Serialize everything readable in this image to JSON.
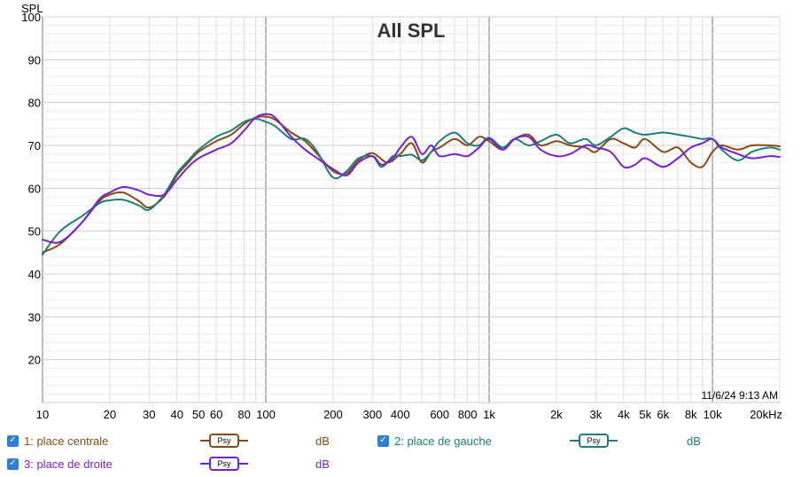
{
  "chart_data": {
    "type": "line",
    "title": "All SPL",
    "ylabel": "SPL",
    "xlabel": "",
    "x_scale": "log",
    "xlim": [
      10,
      20000
    ],
    "ylim": [
      10,
      100
    ],
    "x_ticks": [
      {
        "value": 10,
        "label": "10"
      },
      {
        "value": 20,
        "label": "20"
      },
      {
        "value": 30,
        "label": "30"
      },
      {
        "value": 40,
        "label": "40"
      },
      {
        "value": 50,
        "label": "50"
      },
      {
        "value": 60,
        "label": "60"
      },
      {
        "value": 80,
        "label": "80"
      },
      {
        "value": 100,
        "label": "100"
      },
      {
        "value": 200,
        "label": "200"
      },
      {
        "value": 300,
        "label": "300"
      },
      {
        "value": 400,
        "label": "400"
      },
      {
        "value": 600,
        "label": "600"
      },
      {
        "value": 800,
        "label": "800"
      },
      {
        "value": 1000,
        "label": "1k"
      },
      {
        "value": 2000,
        "label": "2k"
      },
      {
        "value": 3000,
        "label": "3k"
      },
      {
        "value": 4000,
        "label": "4k"
      },
      {
        "value": 5000,
        "label": "5k"
      },
      {
        "value": 6000,
        "label": "6k"
      },
      {
        "value": 8000,
        "label": "8k"
      },
      {
        "value": 10000,
        "label": "10k"
      },
      {
        "value": 20000,
        "label": "20kHz"
      }
    ],
    "y_ticks": [
      20,
      30,
      40,
      50,
      60,
      70,
      80,
      90,
      100
    ],
    "grid": true,
    "timestamp": "11/6/24 9:13 AM",
    "series": [
      {
        "name": "1: place centrale",
        "color": "#8B4A12",
        "points": [
          [
            10,
            45
          ],
          [
            12,
            47
          ],
          [
            15,
            52
          ],
          [
            18,
            57
          ],
          [
            20,
            58.5
          ],
          [
            23,
            59
          ],
          [
            27,
            57
          ],
          [
            30,
            55.5
          ],
          [
            35,
            58
          ],
          [
            40,
            63
          ],
          [
            45,
            66
          ],
          [
            50,
            68.5
          ],
          [
            60,
            71
          ],
          [
            70,
            72.5
          ],
          [
            80,
            75
          ],
          [
            90,
            76.5
          ],
          [
            100,
            76.7
          ],
          [
            110,
            76
          ],
          [
            130,
            73
          ],
          [
            150,
            71
          ],
          [
            170,
            68
          ],
          [
            200,
            64
          ],
          [
            230,
            63.5
          ],
          [
            260,
            66.5
          ],
          [
            300,
            68.2
          ],
          [
            350,
            66
          ],
          [
            400,
            68
          ],
          [
            450,
            70.5
          ],
          [
            500,
            66
          ],
          [
            550,
            68.5
          ],
          [
            600,
            69.5
          ],
          [
            700,
            71.5
          ],
          [
            800,
            70
          ],
          [
            900,
            72
          ],
          [
            1000,
            71
          ],
          [
            1150,
            69
          ],
          [
            1300,
            71.5
          ],
          [
            1500,
            72.5
          ],
          [
            1700,
            70
          ],
          [
            2000,
            71
          ],
          [
            2300,
            70
          ],
          [
            2700,
            69.5
          ],
          [
            3000,
            68.5
          ],
          [
            3500,
            71.5
          ],
          [
            4000,
            70.5
          ],
          [
            4500,
            69.5
          ],
          [
            5000,
            71.5
          ],
          [
            6000,
            68.5
          ],
          [
            7000,
            69.5
          ],
          [
            8000,
            66
          ],
          [
            9000,
            65
          ],
          [
            10000,
            68.5
          ],
          [
            11000,
            70
          ],
          [
            13000,
            69
          ],
          [
            15000,
            70
          ],
          [
            18000,
            70
          ],
          [
            20000,
            69.8
          ]
        ]
      },
      {
        "name": "2: place de gauche",
        "color": "#1A7F7A",
        "points": [
          [
            10,
            44.5
          ],
          [
            12,
            50
          ],
          [
            15,
            53.5
          ],
          [
            18,
            56.5
          ],
          [
            20,
            57.2
          ],
          [
            23,
            57.3
          ],
          [
            27,
            56
          ],
          [
            30,
            55
          ],
          [
            35,
            58.5
          ],
          [
            40,
            63.5
          ],
          [
            45,
            66.5
          ],
          [
            50,
            69
          ],
          [
            60,
            72
          ],
          [
            70,
            73.5
          ],
          [
            80,
            75.5
          ],
          [
            90,
            76.2
          ],
          [
            100,
            75.5
          ],
          [
            110,
            74.5
          ],
          [
            130,
            71.5
          ],
          [
            150,
            71.5
          ],
          [
            170,
            68.5
          ],
          [
            200,
            62.5
          ],
          [
            230,
            64
          ],
          [
            260,
            67
          ],
          [
            300,
            67.5
          ],
          [
            330,
            65
          ],
          [
            370,
            67.5
          ],
          [
            400,
            67.5
          ],
          [
            450,
            67.8
          ],
          [
            500,
            66.5
          ],
          [
            550,
            68.5
          ],
          [
            600,
            71
          ],
          [
            700,
            73
          ],
          [
            800,
            70.5
          ],
          [
            900,
            70
          ],
          [
            1000,
            71.8
          ],
          [
            1150,
            69.5
          ],
          [
            1300,
            71.5
          ],
          [
            1500,
            70
          ],
          [
            1700,
            71
          ],
          [
            2000,
            72.5
          ],
          [
            2300,
            70.5
          ],
          [
            2700,
            71.5
          ],
          [
            3000,
            70
          ],
          [
            3500,
            72
          ],
          [
            4000,
            74
          ],
          [
            4500,
            73
          ],
          [
            5000,
            72.5
          ],
          [
            6000,
            73
          ],
          [
            7000,
            72.5
          ],
          [
            8000,
            72
          ],
          [
            9000,
            71.5
          ],
          [
            10000,
            71.5
          ],
          [
            11000,
            69
          ],
          [
            13000,
            66.5
          ],
          [
            15000,
            68.5
          ],
          [
            18000,
            69.5
          ],
          [
            20000,
            69
          ]
        ]
      },
      {
        "name": "3: place de droite",
        "color": "#7B1FD6",
        "points": [
          [
            10,
            48
          ],
          [
            12,
            47.5
          ],
          [
            15,
            52
          ],
          [
            18,
            57.5
          ],
          [
            20,
            59
          ],
          [
            23,
            60.3
          ],
          [
            27,
            59.5
          ],
          [
            30,
            58.5
          ],
          [
            35,
            58.5
          ],
          [
            40,
            62
          ],
          [
            45,
            65
          ],
          [
            50,
            67
          ],
          [
            60,
            69
          ],
          [
            70,
            70.5
          ],
          [
            80,
            73.5
          ],
          [
            90,
            76.5
          ],
          [
            100,
            77.3
          ],
          [
            110,
            76.5
          ],
          [
            130,
            72
          ],
          [
            150,
            69
          ],
          [
            170,
            67
          ],
          [
            200,
            64.5
          ],
          [
            230,
            63
          ],
          [
            260,
            66
          ],
          [
            300,
            67.5
          ],
          [
            330,
            65.5
          ],
          [
            370,
            67
          ],
          [
            400,
            69.5
          ],
          [
            450,
            72
          ],
          [
            500,
            68
          ],
          [
            550,
            70
          ],
          [
            600,
            67.5
          ],
          [
            700,
            68
          ],
          [
            800,
            67.5
          ],
          [
            900,
            69.5
          ],
          [
            1000,
            71.5
          ],
          [
            1150,
            69
          ],
          [
            1300,
            71.5
          ],
          [
            1500,
            72
          ],
          [
            1700,
            69
          ],
          [
            2000,
            67.5
          ],
          [
            2300,
            68
          ],
          [
            2700,
            70
          ],
          [
            3000,
            69.5
          ],
          [
            3500,
            68.5
          ],
          [
            4000,
            65
          ],
          [
            4500,
            65.5
          ],
          [
            5000,
            67
          ],
          [
            6000,
            65
          ],
          [
            7000,
            67
          ],
          [
            8000,
            69.5
          ],
          [
            9000,
            70.5
          ],
          [
            10000,
            71.5
          ],
          [
            11000,
            69.5
          ],
          [
            13000,
            68
          ],
          [
            15000,
            67
          ],
          [
            18000,
            67.5
          ],
          [
            20000,
            67.3
          ]
        ]
      }
    ]
  },
  "legend": {
    "items": [
      {
        "label": "1: place centrale",
        "psy": "Psy",
        "unit": "dB",
        "color": "#8B4A12"
      },
      {
        "label": "2: place de gauche",
        "psy": "Psy",
        "unit": "dB",
        "color": "#1A7F7A"
      },
      {
        "label": "3: place de droite",
        "psy": "Psy",
        "unit": "dB",
        "color": "#7B1FD6"
      }
    ]
  }
}
